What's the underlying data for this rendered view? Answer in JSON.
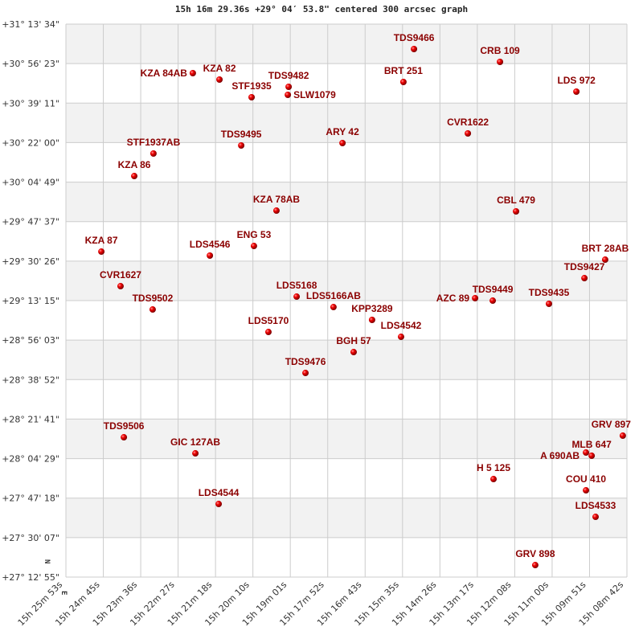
{
  "chart_data": {
    "type": "scatter",
    "title": "15h 16m 29.36s +29° 04′ 53.8\" centered 300 arcsec graph",
    "xlabel": "",
    "ylabel": "",
    "x_units": "right ascension (hours)",
    "y_units": "declination (degrees)",
    "xlim": [
      15.43139,
      15.145
    ],
    "ylim": [
      27.2153,
      31.2261
    ],
    "grid": true,
    "compass": {
      "north": "N",
      "east": "E"
    },
    "x_tick_labels": [
      "15h 25m 53s",
      "15h 24m 45s",
      "15h 23m 36s",
      "15h 22m 27s",
      "15h 21m 18s",
      "15h 20m 10s",
      "15h 19m 01s",
      "15h 17m 52s",
      "15h 16m 43s",
      "15h 15m 35s",
      "15h 14m 26s",
      "15h 13m 17s",
      "15h 12m 08s",
      "15h 11m 00s",
      "15h 09m 51s",
      "15h 08m 42s"
    ],
    "y_tick_labels": [
      "+31° 13' 34\"",
      "+30° 56' 23\"",
      "+30° 39' 11\"",
      "+30° 22' 00\"",
      "+30° 04' 49\"",
      "+29° 47' 37\"",
      "+29° 30' 26\"",
      "+29° 13' 15\"",
      "+28° 56' 03\"",
      "+28° 38' 52\"",
      "+28° 21' 41\"",
      "+28° 04' 29\"",
      "+27° 47' 18\"",
      "+27° 30' 07\"",
      "+27° 12' 55\""
    ],
    "colors": {
      "point": "#dd0000",
      "label": "#8b0000",
      "band": "#f2f2f2",
      "grid": "#cccccc"
    },
    "points": [
      {
        "name": "TDS9466",
        "ra": 15.2537,
        "dec": 31.0454
      },
      {
        "name": "CRB 109",
        "ra": 15.2098,
        "dec": 30.9521
      },
      {
        "name": "KZA  84AB",
        "ra": 15.3666,
        "dec": 30.8705
      },
      {
        "name": "KZA  82",
        "ra": 15.353,
        "dec": 30.8238
      },
      {
        "name": "BRT 251",
        "ra": 15.2591,
        "dec": 30.8063
      },
      {
        "name": "LDS 972",
        "ra": 15.1708,
        "dec": 30.7364
      },
      {
        "name": "STF1935",
        "ra": 15.3366,
        "dec": 30.6956
      },
      {
        "name": "TDS9482",
        "ra": 15.3177,
        "dec": 30.7714
      },
      {
        "name": "SLW1079",
        "ra": 15.3181,
        "dec": 30.7131
      },
      {
        "name": "CVR1622",
        "ra": 15.2262,
        "dec": 30.4332
      },
      {
        "name": "ARY  42",
        "ra": 15.2902,
        "dec": 30.3633
      },
      {
        "name": "TDS9495",
        "ra": 15.3419,
        "dec": 30.3458
      },
      {
        "name": "STF1937AB",
        "ra": 15.3867,
        "dec": 30.2875
      },
      {
        "name": "KZA  86",
        "ra": 15.3965,
        "dec": 30.1242
      },
      {
        "name": "KZA  78AB",
        "ra": 15.3239,
        "dec": 29.8735
      },
      {
        "name": "CBL 479",
        "ra": 15.2016,
        "dec": 29.8677
      },
      {
        "name": "KZA  87",
        "ra": 15.4133,
        "dec": 29.5762
      },
      {
        "name": "ENG  53",
        "ra": 15.3354,
        "dec": 29.617
      },
      {
        "name": "LDS4546",
        "ra": 15.3579,
        "dec": 29.5471
      },
      {
        "name": "BRT  28AB",
        "ra": 15.1561,
        "dec": 29.5179
      },
      {
        "name": "TDS9427",
        "ra": 15.1667,
        "dec": 29.3838
      },
      {
        "name": "CVR1627",
        "ra": 15.4035,
        "dec": 29.3255
      },
      {
        "name": "LDS5168",
        "ra": 15.3136,
        "dec": 29.2497
      },
      {
        "name": "AZC  89",
        "ra": 15.2225,
        "dec": 29.2381
      },
      {
        "name": "TDS9449",
        "ra": 15.2135,
        "dec": 29.2206
      },
      {
        "name": "TDS9435",
        "ra": 15.1848,
        "dec": 29.1973
      },
      {
        "name": "LDS5166AB",
        "ra": 15.2948,
        "dec": 29.1739
      },
      {
        "name": "TDS9502",
        "ra": 15.3871,
        "dec": 29.1564
      },
      {
        "name": "KPP3289",
        "ra": 15.2751,
        "dec": 29.0807
      },
      {
        "name": "LDS5170",
        "ra": 15.328,
        "dec": 28.9932
      },
      {
        "name": "LDS4542",
        "ra": 15.2603,
        "dec": 28.9582
      },
      {
        "name": "BGH  57",
        "ra": 15.2845,
        "dec": 28.8475
      },
      {
        "name": "TDS9476",
        "ra": 15.3091,
        "dec": 28.6959
      },
      {
        "name": "TDS9506",
        "ra": 15.4018,
        "dec": 28.2295
      },
      {
        "name": "GRV 897",
        "ra": 15.1471,
        "dec": 28.2411
      },
      {
        "name": "GIC 127AB",
        "ra": 15.3653,
        "dec": 28.1129
      },
      {
        "name": "A   690AB",
        "ra": 15.1659,
        "dec": 28.1187
      },
      {
        "name": "MLB 647",
        "ra": 15.163,
        "dec": 28.0954
      },
      {
        "name": "H 5 125",
        "ra": 15.2131,
        "dec": 27.9263
      },
      {
        "name": "COU 410",
        "ra": 15.1659,
        "dec": 27.8447
      },
      {
        "name": "LDS4544",
        "ra": 15.3534,
        "dec": 27.7456
      },
      {
        "name": "LDS4533",
        "ra": 15.161,
        "dec": 27.6523
      },
      {
        "name": "GRV 898",
        "ra": 15.1918,
        "dec": 27.3025
      }
    ]
  }
}
